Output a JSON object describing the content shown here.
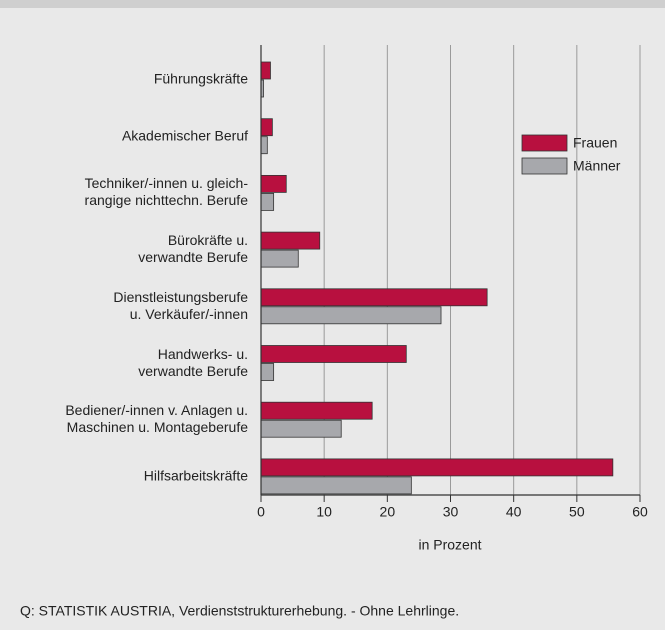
{
  "chart_data": {
    "type": "barh",
    "categories": [
      "Führungskräfte",
      "Akademischer Beruf",
      "Techniker/-innen u. gleich-\nrangige nichttechn. Berufe",
      "Bürokräfte u.\nverwandte Berufe",
      "Dienstleistungsberufe\nu. Verkäufer/-innen",
      "Handwerks- u.\nverwandte Berufe",
      "Bediener/-innen v. Anlagen u.\nMaschinen u. Montageberufe",
      "Hilfsarbeitskräfte"
    ],
    "series": [
      {
        "name": "Frauen",
        "color": "#b8103f",
        "values": [
          1.5,
          1.8,
          4.0,
          9.3,
          35.8,
          23.0,
          17.6,
          55.7
        ]
      },
      {
        "name": "Männer",
        "color": "#a7a8ac",
        "values": [
          0.4,
          1.0,
          2.0,
          5.9,
          28.5,
          2.0,
          12.7,
          23.8
        ]
      }
    ],
    "xlim": [
      0,
      60
    ],
    "xticks": [
      0,
      10,
      20,
      30,
      40,
      50,
      60
    ],
    "grid": true,
    "xlabel": "in Prozent",
    "legend": "upper right",
    "source": "Q: STATISTIK AUSTRIA, Verdienststrukturerhebung. - Ohne Lehrlinge."
  }
}
